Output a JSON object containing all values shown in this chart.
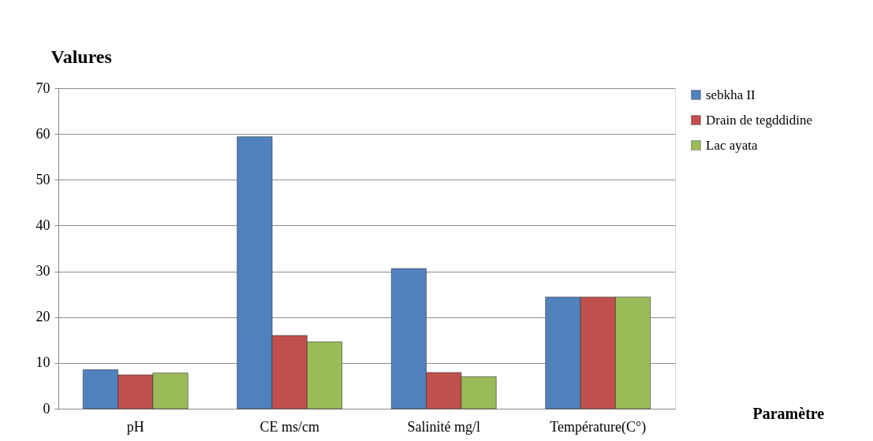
{
  "chart_data": {
    "type": "bar",
    "xlabel": "Paramètre",
    "ylabel": "Valures",
    "categories": [
      "pH",
      "CE ms/cm",
      "Salinité mg/l",
      "Température(C°)"
    ],
    "series": [
      {
        "name": "sebkha II",
        "color": "#4f81bd",
        "values": [
          8.5,
          59.4,
          30.6,
          24.4
        ]
      },
      {
        "name": "Drain de tegddidine",
        "color": "#c0504d",
        "values": [
          7.4,
          16.0,
          7.9,
          24.4
        ]
      },
      {
        "name": "Lac ayata",
        "color": "#9bbb59",
        "values": [
          7.8,
          14.6,
          7.0,
          24.4
        ]
      }
    ],
    "ylim": [
      0,
      70
    ],
    "yticks": [
      0,
      10,
      20,
      30,
      40,
      50,
      60,
      70
    ],
    "grid": "y",
    "legend": "right"
  }
}
